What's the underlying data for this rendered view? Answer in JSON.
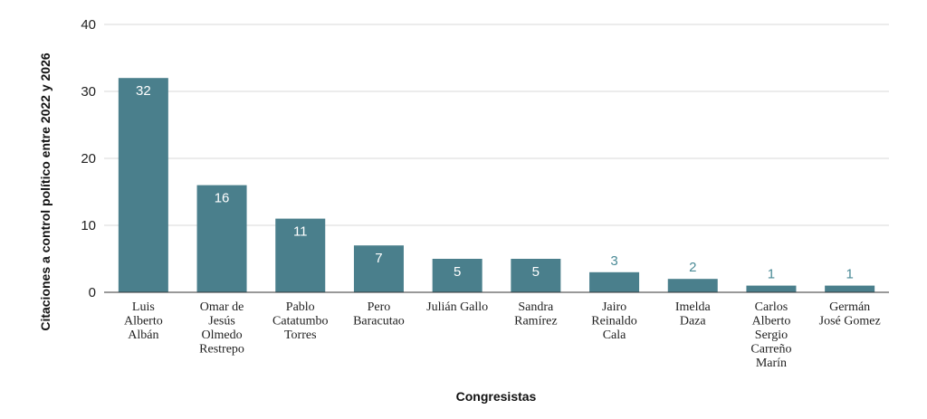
{
  "chart_data": {
    "type": "bar",
    "xlabel": "Congresistas",
    "ylabel": "Citaciones a control político entre 2022 y 2026",
    "ylim": [
      0,
      40
    ],
    "yticks": [
      "0",
      "10",
      "20",
      "30",
      "40"
    ],
    "grid": true,
    "legend": "none",
    "bar_color": "#4a7f8c",
    "outside_label_color": "#4a8a96",
    "categories": [
      [
        "Luis",
        "Alberto",
        "Albán"
      ],
      [
        "Omar de",
        "Jesús",
        "Olmedo",
        "Restrepo"
      ],
      [
        "Pablo",
        "Catatumbo",
        "Torres"
      ],
      [
        "Pero",
        "Baracutao"
      ],
      [
        "Julián Gallo"
      ],
      [
        "Sandra",
        "Ramírez"
      ],
      [
        "Jairo",
        "Reinaldo",
        "Cala"
      ],
      [
        "Imelda",
        "Daza"
      ],
      [
        "Carlos",
        "Alberto",
        "Sergio",
        "Carreño",
        "Marín"
      ],
      [
        "Germán",
        "José Gomez"
      ]
    ],
    "values": [
      32,
      16,
      11,
      7,
      5,
      5,
      3,
      2,
      1,
      1
    ],
    "data_labels": [
      "32",
      "16",
      "11",
      "7",
      "5",
      "5",
      "3",
      "2",
      "1",
      "1"
    ]
  }
}
